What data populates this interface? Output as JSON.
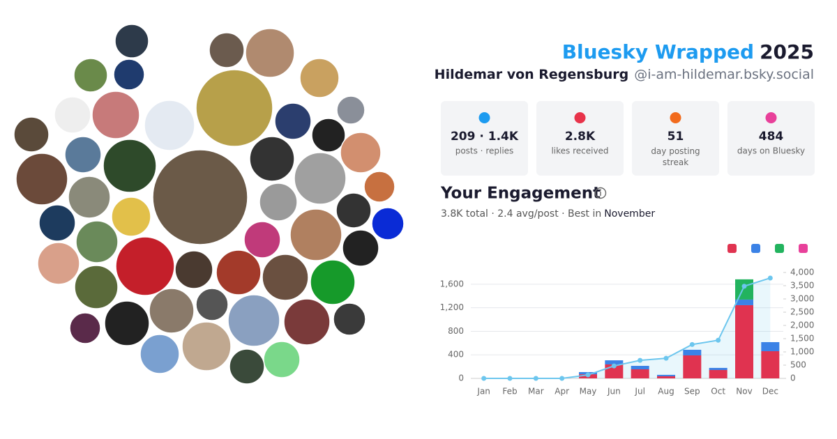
{
  "header": {
    "title": "Bluesky Wrapped",
    "year": "2025",
    "name": "Hildemar von Regensburg",
    "handle": "@i-am-hildemar.bsky.social"
  },
  "stats": [
    {
      "value": "209 · 1.4K",
      "label": "posts · replies",
      "color": "#1d9bf0"
    },
    {
      "value": "2.8K",
      "label": "likes received",
      "color": "#e8334a"
    },
    {
      "value": "51",
      "label": "day posting streak",
      "color": "#f26b1d"
    },
    {
      "value": "484",
      "label": "days on Bluesky",
      "color": "#e8409a"
    }
  ],
  "engagement": {
    "title": "Your Engagement",
    "summary": "3.8K total · 2.4 avg/post · Best in",
    "best_month": "November"
  },
  "chart_data": {
    "type": "stacked-bar-line",
    "categories": [
      "Jan",
      "Feb",
      "Mar",
      "Apr",
      "May",
      "Jun",
      "Jul",
      "Aug",
      "Sep",
      "Oct",
      "Nov",
      "Dec"
    ],
    "series": [
      {
        "color": "#e03350",
        "values": [
          0,
          0,
          0,
          0,
          70,
          237,
          154,
          36,
          391,
          142,
          1244,
          462
        ]
      },
      {
        "color": "#3b82e6",
        "values": [
          0,
          0,
          0,
          0,
          37,
          70,
          59,
          24,
          95,
          36,
          95,
          154
        ]
      },
      {
        "color": "#22b35e",
        "values": [
          0,
          0,
          0,
          0,
          0,
          0,
          0,
          0,
          0,
          0,
          344,
          0
        ]
      },
      {
        "color": "#e8409a",
        "values": [
          0,
          0,
          0,
          0,
          0,
          0,
          0,
          0,
          0,
          0,
          0,
          0
        ]
      },
      {
        "color": "#6cc6ee",
        "axis": "y2",
        "values": [
          0,
          0,
          0,
          0,
          130,
          470,
          680,
          760,
          1280,
          1440,
          3480,
          3790
        ]
      }
    ],
    "ylim": [
      0,
      1800
    ],
    "yticks": [
      0,
      400,
      800,
      {
        "value": 1200,
        "label": "1,200"
      },
      {
        "value": 1600,
        "label": "1,600"
      }
    ],
    "y2lim": [
      0,
      4000
    ],
    "y2ticks": [
      0,
      500,
      {
        "value": 1000,
        "label": "1,000"
      },
      {
        "value": 1500,
        "label": "1,500"
      },
      {
        "value": 2000,
        "label": "2,000"
      },
      {
        "value": 2500,
        "label": "2,500"
      },
      {
        "value": 3000,
        "label": "3,000"
      },
      {
        "value": 3500,
        "label": "3,500"
      },
      {
        "value": 4000,
        "label": "4,000"
      }
    ],
    "grid": true
  }
}
